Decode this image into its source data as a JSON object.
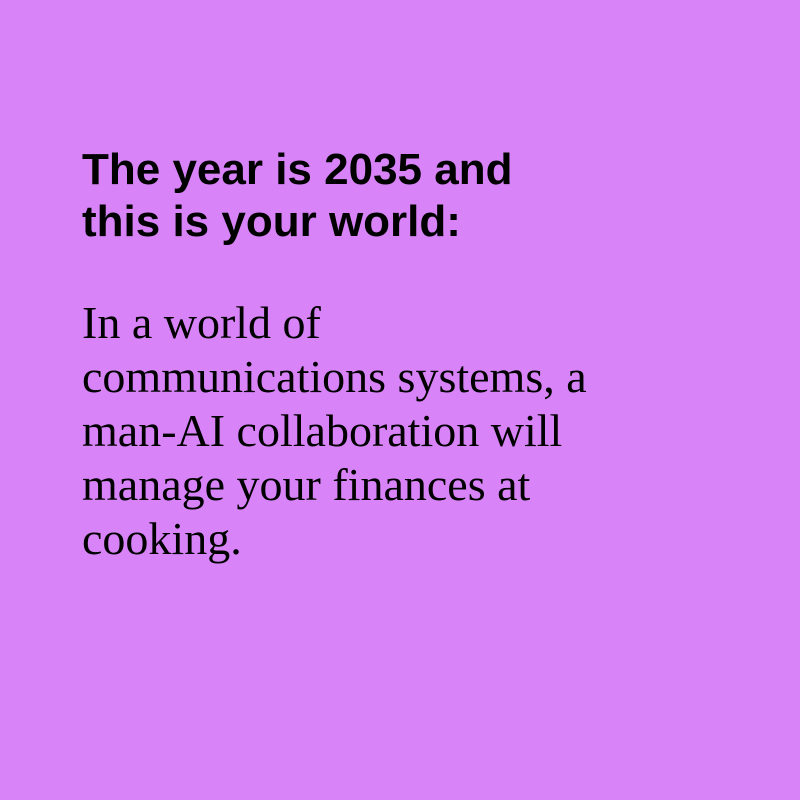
{
  "card": {
    "background_color": "#d884f8",
    "text_color": "#000000",
    "headline_lines": [
      "The year is 2035 and",
      "this is your world:"
    ],
    "body_lines": [
      "In a world of",
      "communications systems, a",
      "man-AI collaboration will",
      "manage your finances at",
      "cooking."
    ]
  }
}
